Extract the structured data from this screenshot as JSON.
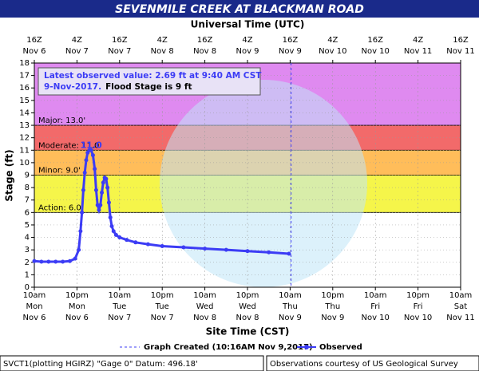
{
  "chart_data": {
    "type": "line",
    "title": "SEVENMILE CREEK AT BLACKMAN ROAD",
    "top_axis_title": "Universal Time (UTC)",
    "x_label": "Site Time (CST)",
    "y_label": "Stage (ft)",
    "xlim": [
      0,
      120
    ],
    "ylim": [
      0,
      18
    ],
    "yticks": [
      0,
      1,
      2,
      3,
      4,
      5,
      6,
      7,
      8,
      9,
      10,
      11,
      12,
      13,
      14,
      15,
      16,
      17,
      18
    ],
    "xticks": [
      {
        "value": 0,
        "label": [
          "10am",
          "Mon",
          "Nov 6"
        ]
      },
      {
        "value": 12,
        "label": [
          "10pm",
          "Mon",
          "Nov 6"
        ]
      },
      {
        "value": 24,
        "label": [
          "10am",
          "Tue",
          "Nov 7"
        ]
      },
      {
        "value": 36,
        "label": [
          "10pm",
          "Tue",
          "Nov 7"
        ]
      },
      {
        "value": 48,
        "label": [
          "10am",
          "Wed",
          "Nov 8"
        ]
      },
      {
        "value": 60,
        "label": [
          "10pm",
          "Wed",
          "Nov 8"
        ]
      },
      {
        "value": 72,
        "label": [
          "10am",
          "Thu",
          "Nov 9"
        ]
      },
      {
        "value": 84,
        "label": [
          "10pm",
          "Thu",
          "Nov 9"
        ]
      },
      {
        "value": 96,
        "label": [
          "10am",
          "Fri",
          "Nov 10"
        ]
      },
      {
        "value": 108,
        "label": [
          "10pm",
          "Fri",
          "Nov 10"
        ]
      },
      {
        "value": 120,
        "label": [
          "10am",
          "Sat",
          "Nov 11"
        ]
      }
    ],
    "x2ticks": [
      {
        "value": 0,
        "label": [
          "16Z",
          "Nov 6"
        ]
      },
      {
        "value": 12,
        "label": [
          "4Z",
          "Nov 7"
        ]
      },
      {
        "value": 24,
        "label": [
          "16Z",
          "Nov 7"
        ]
      },
      {
        "value": 36,
        "label": [
          "4Z",
          "Nov 8"
        ]
      },
      {
        "value": 48,
        "label": [
          "16Z",
          "Nov 8"
        ]
      },
      {
        "value": 60,
        "label": [
          "4Z",
          "Nov 9"
        ]
      },
      {
        "value": 72,
        "label": [
          "16Z",
          "Nov 9"
        ]
      },
      {
        "value": 84,
        "label": [
          "4Z",
          "Nov 10"
        ]
      },
      {
        "value": 96,
        "label": [
          "16Z",
          "Nov 10"
        ]
      },
      {
        "value": 108,
        "label": [
          "4Z",
          "Nov 11"
        ]
      },
      {
        "value": 120,
        "label": [
          "16Z",
          "Nov 11"
        ]
      }
    ],
    "grid": true,
    "flood_categories": [
      {
        "label": "Action: 6.0'",
        "from": 6,
        "to": 9,
        "color": "#f5f54a"
      },
      {
        "label": "Minor: 9.0'",
        "from": 9,
        "to": 11,
        "color": "#ffbd5a"
      },
      {
        "label": "Moderate: 11.0'",
        "from": 11,
        "to": 13,
        "color": "#f26a6a"
      },
      {
        "label": "Major: 13.0'",
        "from": 13,
        "to": 18,
        "color": "#df8af0"
      }
    ],
    "peak_label": "11.0",
    "peak": {
      "x": 16,
      "y": 11.0
    },
    "graph_created": {
      "x": 72.27,
      "label": "Graph Created (10:16AM Nov 9,2017)"
    },
    "series": [
      {
        "name": "Observed",
        "color": "#3c3cf5",
        "x": [
          0,
          2,
          4,
          6,
          8,
          10,
          11.5,
          12.5,
          13,
          13.4,
          13.8,
          14.2,
          14.6,
          15,
          15.5,
          16,
          16.5,
          17,
          17.4,
          17.8,
          18.2,
          18.6,
          19,
          19.4,
          19.8,
          20.2,
          20.6,
          21,
          21.4,
          21.8,
          22.3,
          23,
          24,
          26,
          28.5,
          32,
          36,
          42,
          48,
          54,
          60,
          66,
          71.67
        ],
        "values": [
          2.1,
          2.05,
          2.05,
          2.05,
          2.05,
          2.1,
          2.3,
          3.0,
          4.5,
          6.0,
          7.8,
          9.2,
          10.2,
          10.8,
          11.0,
          11.0,
          10.6,
          9.5,
          7.8,
          6.6,
          6.2,
          6.6,
          7.6,
          8.4,
          8.8,
          8.7,
          8.0,
          6.8,
          5.6,
          4.9,
          4.5,
          4.2,
          4.0,
          3.8,
          3.6,
          3.45,
          3.3,
          3.2,
          3.1,
          3.0,
          2.9,
          2.8,
          2.69
        ]
      }
    ],
    "info": {
      "line1": "Latest observed value: 2.69 ft at 9:40 AM CST",
      "date": "9-Nov-2017.",
      "flood_stage": "Flood Stage is 9 ft"
    },
    "footer_left": "SVCT1(plotting HGIRZ) \"Gage 0\" Datum: 496.18'",
    "footer_right": "Observations courtesy of US Geological Survey"
  }
}
